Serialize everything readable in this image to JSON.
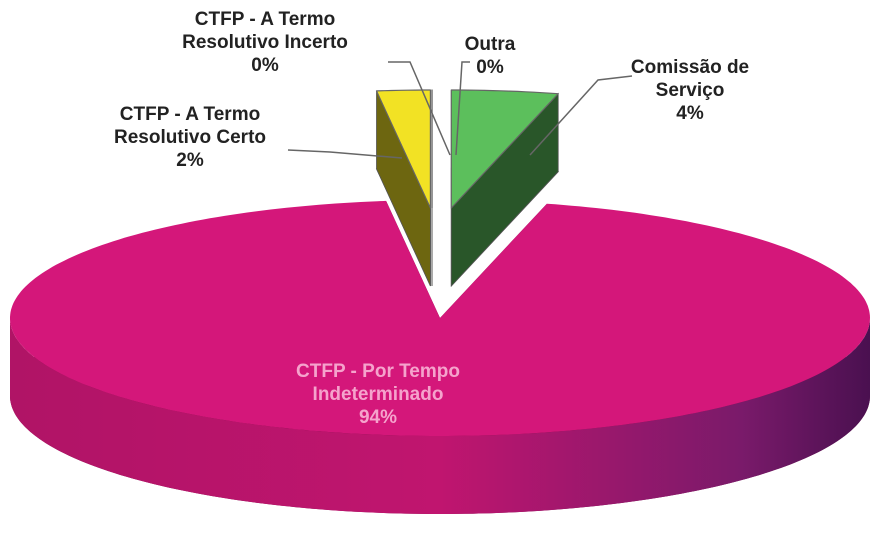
{
  "chart_data": {
    "type": "pie",
    "categories": [
      "Comissão de\nServiço",
      "CTFP - Por Tempo\nIndeterminado",
      "CTFP - A Termo\nResolutivo Certo",
      "CTFP - A Termo\nResolutivo Incerto",
      "Outra"
    ],
    "values": [
      4,
      94,
      2,
      0,
      0
    ],
    "value_labels": [
      "4%",
      "94%",
      "2%",
      "0%",
      "0%"
    ],
    "colors": [
      "#5cbf5c",
      "#d4177a",
      "#f2e224",
      "#ffffff",
      "#ffffff"
    ]
  }
}
